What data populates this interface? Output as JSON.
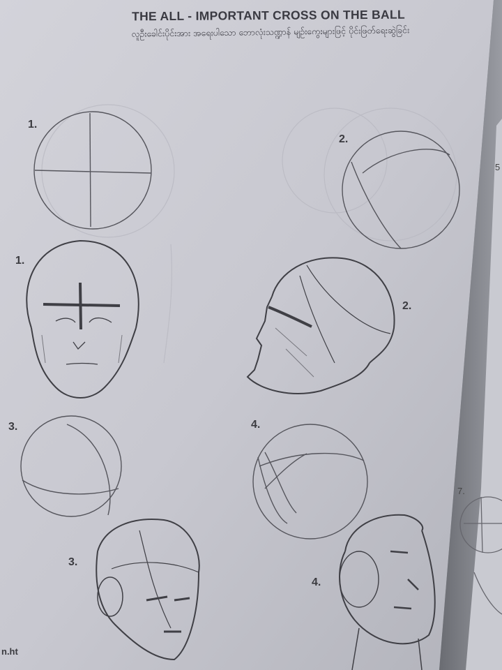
{
  "page": {
    "title": "THE ALL -  IMPORTANT CROSS ON THE BALL",
    "subtitle": "လူဦးခေါင်းပိုင်းအား အရေးပါသော ဘောလုံးသဏ္ဍာန် မျဉ်းကွေးများဖြင့် ပိုင်းဖြတ်ရေးဆွဲခြင်း",
    "footer": "n.ht",
    "edge_label_top": "5",
    "edge_label_bottom": "7."
  },
  "steps": [
    {
      "ball_label": "1.",
      "head_label": "1."
    },
    {
      "ball_label": "2.",
      "head_label": "2."
    },
    {
      "ball_label": "3.",
      "head_label": "3."
    },
    {
      "ball_label": "4.",
      "head_label": "4."
    }
  ]
}
